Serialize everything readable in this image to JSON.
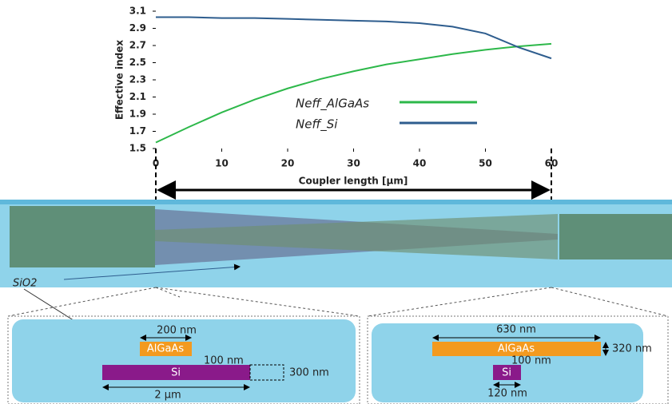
{
  "chart_data": {
    "type": "line",
    "x_label": "Coupler length [µm]",
    "y_label": "Effective index",
    "x": [
      0,
      5,
      10,
      15,
      20,
      25,
      30,
      35,
      40,
      45,
      50,
      55,
      60
    ],
    "series": [
      {
        "name": "Neff_AlGaAs",
        "color": "#2db84a",
        "values": [
          1.57,
          1.75,
          1.92,
          2.07,
          2.2,
          2.31,
          2.4,
          2.48,
          2.54,
          2.6,
          2.65,
          2.69,
          2.72
        ]
      },
      {
        "name": "Neff_Si",
        "color": "#2e5d8e",
        "values": [
          3.03,
          3.03,
          3.02,
          3.02,
          3.01,
          3.0,
          2.99,
          2.98,
          2.96,
          2.92,
          2.84,
          2.68,
          2.55
        ]
      }
    ],
    "xlim": [
      0,
      60
    ],
    "xticks": [
      0,
      10,
      20,
      30,
      40,
      50,
      60
    ],
    "ylim": [
      1.5,
      3.1
    ],
    "yticks": [
      1.5,
      1.7,
      1.9,
      2.1,
      2.3,
      2.5,
      2.7,
      2.9,
      3.1
    ]
  },
  "diagram": {
    "sio2_label": "SiO2",
    "left": {
      "algaas": "AlGaAs",
      "si": "Si",
      "algaas_width": "200 nm",
      "gap": "100 nm",
      "si_height": "300 nm",
      "si_width": "2 µm"
    },
    "right": {
      "algaas": "AlGaAs",
      "si": "Si",
      "algaas_width": "630 nm",
      "algaas_height": "320 nm",
      "gap": "100 nm",
      "si_width": "120 nm"
    }
  }
}
